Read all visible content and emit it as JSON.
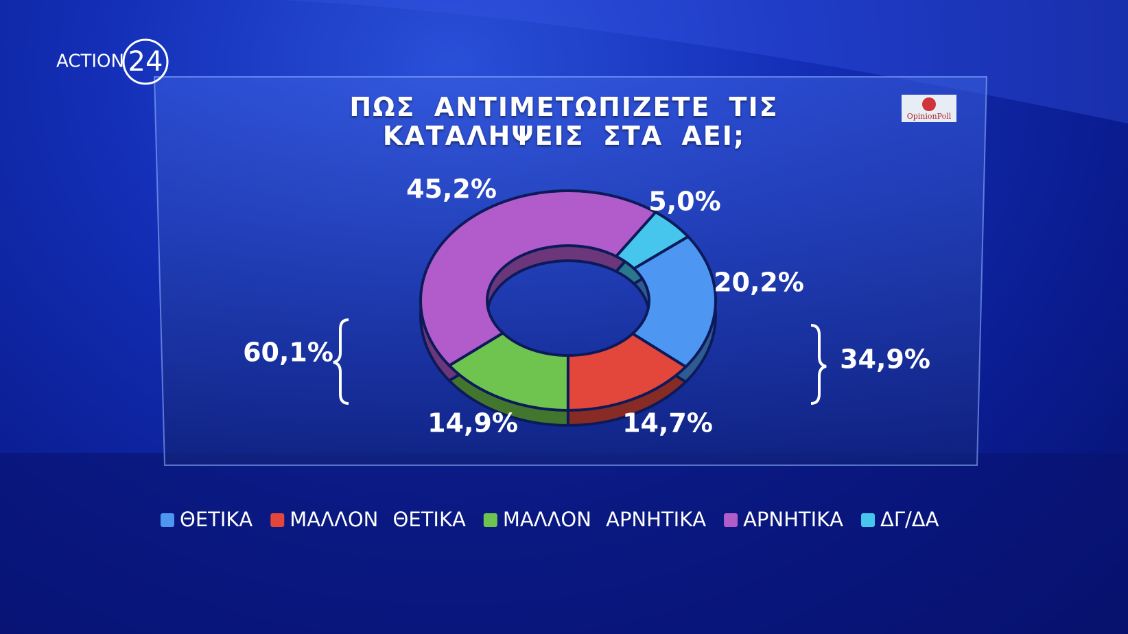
{
  "channel_logo": {
    "text": "ACTION",
    "number": "24"
  },
  "source": "OpinionPoll",
  "chart_data": {
    "type": "pie",
    "donut": true,
    "title": "ΠΩΣ ΑΝΤΙΜΕΤΩΠΙΖΕΤΕ ΤΙΣ ΚΑΤΑΛΗΨΕΙΣ ΣΤΑ ΑΕΙ;",
    "categories": [
      "ΘΕΤΙΚΑ",
      "ΜΑΛΛΟΝ ΘΕΤΙΚΑ",
      "ΜΑΛΛΟΝ ΑΡΝΗΤΙΚΑ",
      "ΑΡΝΗΤΙΚΑ",
      "ΔΓ/ΔΑ"
    ],
    "values": [
      20.2,
      14.7,
      14.9,
      45.2,
      5.0
    ],
    "value_labels": [
      "20,2%",
      "14,7%",
      "14,9%",
      "45,2%",
      "5,0%"
    ],
    "colors": [
      "#4d97f2",
      "#e3473c",
      "#6ec44e",
      "#b25ccb",
      "#46c6ec"
    ],
    "annotations": [
      "60,1%",
      "34,9%"
    ],
    "legend": "bottom"
  }
}
